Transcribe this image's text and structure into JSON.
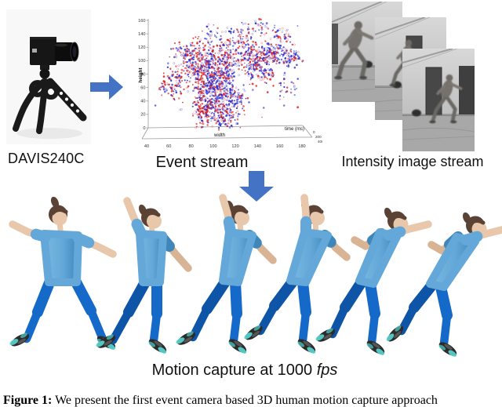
{
  "pipeline": {
    "camera_label": "DAVIS240C",
    "event_stream_label": "Event stream",
    "intensity_label": "Intensity image stream",
    "mocap_label_prefix": "Motion capture at 1000 ",
    "mocap_label_italic": "fps"
  },
  "caption": {
    "figure_prefix": "Figure 1:",
    "text": " We present the first event camera based 3D human motion capture approach"
  },
  "chart_data": {
    "type": "scatter",
    "title": "Event stream",
    "description": "3D scatter of event camera output over time; blue and red dots are positive/negative polarity events forming a moving human silhouette",
    "xlabel": "width",
    "ylabel": "height",
    "zlabel": "time (ms)",
    "x_ticks": [
      40,
      60,
      80,
      100,
      120,
      140,
      160,
      180
    ],
    "y_ticks": [
      0,
      20,
      40,
      60,
      80,
      100,
      120,
      140,
      160
    ],
    "z_ticks": [
      0,
      200,
      400
    ],
    "series": [
      {
        "name": "positive events",
        "color": "#2b2fd4"
      },
      {
        "name": "negative events",
        "color": "#de1f1f"
      }
    ],
    "legend": "none",
    "grid": false
  },
  "colors": {
    "arrow": "#4472c4",
    "shirt": "#63a8d8",
    "shirt_shade": "#3f86bb",
    "pants": "#1569c9",
    "pants_shade": "#0e55a8",
    "skin": "#e8c7ab",
    "hair": "#5a4234",
    "shoe": "#2b2b2b",
    "shoe_accent": "#57cec9"
  }
}
